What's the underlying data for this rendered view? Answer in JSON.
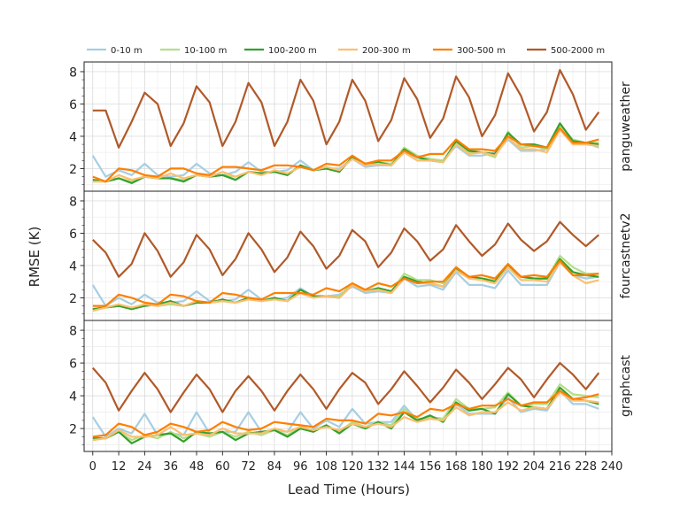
{
  "chart_data": {
    "type": "line",
    "xlabel": "Lead Time (Hours)",
    "ylabel": "RMSE (K)",
    "x_ticks": [
      0,
      12,
      24,
      36,
      48,
      60,
      72,
      84,
      96,
      108,
      120,
      132,
      144,
      156,
      168,
      180,
      192,
      204,
      216,
      228,
      240
    ],
    "xlim": [
      -4,
      240
    ],
    "ylim": [
      0.6,
      8.6
    ],
    "y_ticks": [
      2,
      4,
      6,
      8
    ],
    "grid": true,
    "legend_position": "top",
    "colors": {
      "0-10 m": "#a6cee3",
      "10-100 m": "#b2df8a",
      "100-200 m": "#33a02c",
      "200-300 m": "#fdbf6f",
      "300-500 m": "#ff7f00",
      "500-2000 m": "#b15928"
    },
    "x": [
      0,
      6,
      12,
      18,
      24,
      30,
      36,
      42,
      48,
      54,
      60,
      66,
      72,
      78,
      84,
      90,
      96,
      102,
      108,
      114,
      120,
      126,
      132,
      138,
      144,
      150,
      156,
      162,
      168,
      174,
      180,
      186,
      192,
      198,
      204,
      210,
      216,
      222,
      228,
      234
    ],
    "panels": [
      {
        "label": "panguweather",
        "series": [
          {
            "name": "0-10 m",
            "values": [
              2.8,
              1.5,
              1.9,
              1.6,
              2.3,
              1.6,
              1.5,
              1.6,
              2.3,
              1.7,
              1.6,
              1.8,
              2.4,
              1.8,
              1.8,
              1.9,
              2.5,
              1.9,
              2.0,
              2.0,
              2.6,
              2.1,
              2.2,
              2.2,
              3.1,
              2.5,
              2.5,
              2.5,
              3.4,
              2.8,
              2.8,
              3.0,
              3.8,
              3.1,
              3.1,
              3.2,
              4.5,
              3.6,
              3.6,
              3.3
            ]
          },
          {
            "name": "10-100 m",
            "values": [
              1.3,
              1.2,
              1.4,
              1.2,
              1.5,
              1.4,
              1.4,
              1.3,
              1.6,
              1.5,
              1.6,
              1.5,
              1.8,
              1.7,
              1.8,
              1.6,
              2.2,
              1.9,
              2.0,
              1.8,
              2.7,
              2.3,
              2.4,
              2.3,
              3.3,
              2.8,
              2.6,
              2.5,
              3.6,
              3.0,
              3.0,
              2.7,
              4.3,
              3.3,
              3.4,
              3.2,
              4.7,
              3.8,
              3.6,
              3.6
            ]
          },
          {
            "name": "100-200 m",
            "values": [
              1.3,
              1.2,
              1.4,
              1.1,
              1.5,
              1.4,
              1.4,
              1.2,
              1.6,
              1.5,
              1.6,
              1.3,
              1.8,
              1.7,
              1.8,
              1.6,
              2.2,
              1.9,
              2.0,
              1.8,
              2.7,
              2.3,
              2.4,
              2.2,
              3.2,
              2.7,
              2.5,
              2.4,
              3.7,
              3.1,
              3.0,
              2.9,
              4.2,
              3.5,
              3.5,
              3.3,
              4.8,
              3.7,
              3.6,
              3.5
            ]
          },
          {
            "name": "200-300 m",
            "values": [
              1.2,
              1.2,
              1.6,
              1.3,
              1.5,
              1.4,
              1.7,
              1.4,
              1.6,
              1.5,
              1.8,
              1.5,
              1.8,
              1.6,
              1.9,
              1.7,
              2.1,
              1.9,
              2.1,
              1.9,
              2.6,
              2.2,
              2.3,
              2.2,
              3.0,
              2.5,
              2.5,
              2.4,
              3.5,
              2.9,
              3.0,
              2.8,
              3.9,
              3.2,
              3.2,
              3.0,
              4.4,
              3.5,
              3.5,
              3.4
            ]
          },
          {
            "name": "300-500 m",
            "values": [
              1.5,
              1.2,
              2.0,
              1.9,
              1.6,
              1.5,
              2.0,
              2.0,
              1.7,
              1.6,
              2.1,
              2.1,
              2.0,
              1.9,
              2.2,
              2.2,
              2.1,
              1.9,
              2.3,
              2.2,
              2.8,
              2.3,
              2.5,
              2.5,
              3.1,
              2.7,
              2.9,
              2.9,
              3.8,
              3.2,
              3.2,
              3.1,
              4.0,
              3.5,
              3.4,
              3.3,
              4.5,
              3.6,
              3.6,
              3.8
            ]
          },
          {
            "name": "500-2000 m",
            "values": [
              5.6,
              5.6,
              3.3,
              4.9,
              6.7,
              6.0,
              3.4,
              4.8,
              7.1,
              6.1,
              3.4,
              4.9,
              7.3,
              6.1,
              3.4,
              4.9,
              7.5,
              6.2,
              3.5,
              4.9,
              7.5,
              6.2,
              3.7,
              5.0,
              7.6,
              6.3,
              3.9,
              5.1,
              7.7,
              6.4,
              4.0,
              5.3,
              7.9,
              6.5,
              4.3,
              5.5,
              8.1,
              6.6,
              4.4,
              5.5
            ]
          }
        ]
      },
      {
        "label": "fourcastnetv2",
        "series": [
          {
            "name": "0-10 m",
            "values": [
              2.8,
              1.5,
              2.0,
              1.6,
              2.2,
              1.7,
              1.7,
              1.8,
              2.4,
              1.8,
              1.8,
              1.9,
              2.5,
              1.9,
              1.9,
              2.0,
              2.6,
              2.1,
              2.1,
              2.2,
              2.7,
              2.3,
              2.4,
              2.3,
              3.2,
              2.7,
              2.8,
              2.5,
              3.6,
              2.8,
              2.8,
              2.6,
              3.7,
              2.8,
              2.8,
              2.8,
              4.2,
              3.4,
              3.2,
              3.3
            ]
          },
          {
            "name": "10-100 m",
            "values": [
              1.3,
              1.4,
              1.5,
              1.3,
              1.6,
              1.5,
              1.6,
              1.5,
              1.7,
              1.7,
              1.8,
              1.7,
              2.0,
              1.8,
              2.0,
              1.8,
              2.5,
              2.1,
              2.1,
              2.1,
              2.9,
              2.5,
              2.5,
              2.4,
              3.5,
              3.1,
              3.1,
              2.9,
              3.8,
              3.3,
              3.2,
              3.1,
              4.0,
              3.3,
              3.2,
              3.2,
              4.6,
              3.9,
              3.5,
              3.5
            ]
          },
          {
            "name": "100-200 m",
            "values": [
              1.3,
              1.4,
              1.5,
              1.3,
              1.5,
              1.6,
              1.8,
              1.5,
              1.7,
              1.7,
              1.9,
              1.7,
              2.0,
              1.8,
              2.0,
              1.8,
              2.5,
              2.1,
              2.1,
              2.0,
              2.8,
              2.4,
              2.6,
              2.4,
              3.3,
              3.0,
              2.9,
              2.7,
              3.8,
              3.3,
              3.2,
              3.0,
              4.0,
              3.3,
              3.2,
              3.2,
              4.4,
              3.6,
              3.4,
              3.3
            ]
          },
          {
            "name": "200-300 m",
            "values": [
              1.2,
              1.4,
              1.6,
              1.4,
              1.6,
              1.5,
              1.7,
              1.5,
              1.8,
              1.7,
              1.8,
              1.7,
              1.9,
              1.8,
              1.9,
              1.8,
              2.3,
              2.0,
              2.1,
              2.0,
              2.8,
              2.4,
              2.5,
              2.3,
              3.2,
              2.9,
              2.9,
              2.7,
              3.7,
              3.2,
              3.1,
              2.9,
              3.9,
              3.1,
              3.1,
              3.0,
              4.2,
              3.4,
              2.9,
              3.1
            ]
          },
          {
            "name": "300-500 m",
            "values": [
              1.5,
              1.5,
              2.2,
              2.0,
              1.7,
              1.6,
              2.2,
              2.1,
              1.8,
              1.7,
              2.3,
              2.2,
              2.0,
              1.9,
              2.3,
              2.3,
              2.3,
              2.2,
              2.6,
              2.4,
              2.9,
              2.5,
              2.9,
              2.7,
              3.2,
              2.9,
              3.0,
              3.0,
              3.9,
              3.3,
              3.4,
              3.2,
              4.1,
              3.3,
              3.4,
              3.3,
              4.3,
              3.4,
              3.4,
              3.5
            ]
          },
          {
            "name": "500-2000 m",
            "values": [
              5.6,
              4.8,
              3.3,
              4.1,
              6.0,
              4.9,
              3.3,
              4.2,
              5.9,
              5.0,
              3.4,
              4.4,
              6.0,
              5.0,
              3.6,
              4.5,
              6.1,
              5.2,
              3.8,
              4.6,
              6.2,
              5.5,
              3.9,
              4.8,
              6.3,
              5.5,
              4.3,
              5.0,
              6.5,
              5.5,
              4.6,
              5.3,
              6.6,
              5.6,
              4.9,
              5.5,
              6.7,
              5.9,
              5.2,
              5.9
            ]
          }
        ]
      },
      {
        "label": "graphcast",
        "series": [
          {
            "name": "0-10 m",
            "values": [
              2.7,
              1.5,
              2.0,
              1.7,
              2.9,
              1.6,
              1.7,
              1.6,
              3.0,
              1.7,
              1.8,
              1.8,
              3.0,
              1.8,
              1.9,
              1.8,
              3.0,
              2.0,
              2.5,
              2.1,
              3.2,
              2.3,
              2.4,
              2.4,
              3.4,
              2.5,
              2.7,
              2.6,
              3.5,
              2.9,
              2.9,
              2.9,
              3.9,
              3.0,
              3.2,
              3.1,
              4.3,
              3.5,
              3.5,
              3.2
            ]
          },
          {
            "name": "10-100 m",
            "values": [
              1.4,
              1.4,
              1.8,
              1.3,
              1.6,
              1.4,
              1.8,
              1.4,
              1.7,
              1.5,
              1.8,
              1.5,
              1.8,
              1.6,
              1.9,
              1.6,
              2.1,
              1.9,
              2.2,
              1.8,
              2.4,
              2.1,
              2.4,
              2.2,
              3.2,
              2.6,
              2.6,
              2.6,
              3.8,
              3.2,
              3.2,
              3.3,
              4.2,
              3.4,
              3.5,
              3.5,
              4.7,
              4.1,
              4.0,
              3.9
            ]
          },
          {
            "name": "100-200 m",
            "values": [
              1.4,
              1.4,
              1.8,
              1.1,
              1.5,
              1.6,
              1.7,
              1.2,
              1.8,
              1.7,
              1.8,
              1.3,
              1.7,
              1.8,
              1.9,
              1.5,
              2.0,
              1.8,
              2.2,
              1.7,
              2.3,
              2.0,
              2.4,
              2.0,
              3.0,
              2.5,
              2.8,
              2.4,
              3.6,
              3.1,
              3.2,
              2.9,
              4.1,
              3.4,
              3.3,
              3.2,
              4.5,
              3.8,
              3.7,
              3.5
            ]
          },
          {
            "name": "200-300 m",
            "values": [
              1.3,
              1.4,
              1.9,
              1.5,
              1.5,
              1.6,
              2.1,
              1.6,
              1.7,
              1.6,
              2.0,
              1.7,
              1.7,
              1.7,
              2.0,
              1.8,
              2.1,
              1.9,
              2.1,
              1.9,
              2.3,
              2.1,
              2.3,
              2.1,
              2.7,
              2.4,
              2.6,
              2.5,
              3.3,
              2.8,
              3.0,
              3.0,
              3.6,
              3.1,
              3.3,
              3.2,
              4.2,
              3.7,
              3.7,
              3.6
            ]
          },
          {
            "name": "300-500 m",
            "values": [
              1.5,
              1.6,
              2.3,
              2.1,
              1.6,
              1.8,
              2.3,
              2.1,
              1.8,
              1.9,
              2.4,
              2.1,
              1.9,
              2.0,
              2.4,
              2.3,
              2.2,
              2.1,
              2.6,
              2.5,
              2.5,
              2.3,
              2.9,
              2.8,
              3.0,
              2.7,
              3.2,
              3.1,
              3.5,
              3.2,
              3.4,
              3.4,
              3.8,
              3.4,
              3.6,
              3.6,
              4.3,
              3.8,
              3.9,
              4.1
            ]
          },
          {
            "name": "500-2000 m",
            "values": [
              5.7,
              4.8,
              3.1,
              4.3,
              5.4,
              4.4,
              3.0,
              4.2,
              5.3,
              4.4,
              3.0,
              4.3,
              5.2,
              4.3,
              3.1,
              4.3,
              5.3,
              4.4,
              3.2,
              4.4,
              5.4,
              4.8,
              3.5,
              4.4,
              5.5,
              4.6,
              3.6,
              4.5,
              5.6,
              4.8,
              3.8,
              4.7,
              5.7,
              5.0,
              3.9,
              5.0,
              6.0,
              5.3,
              4.4,
              5.4
            ]
          }
        ]
      }
    ]
  }
}
